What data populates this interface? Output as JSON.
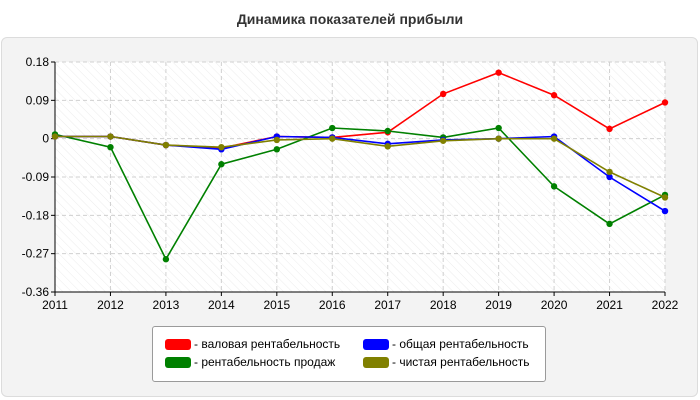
{
  "chart_data": {
    "type": "line",
    "title": "Динамика показателей прибыли",
    "xlabel": "",
    "ylabel": "",
    "x": [
      "2011",
      "2012",
      "2013",
      "2014",
      "2015",
      "2016",
      "2017",
      "2018",
      "2019",
      "2020",
      "2021",
      "2022"
    ],
    "ylim": [
      -0.36,
      0.18
    ],
    "yticks": [
      "0.18",
      "0.09",
      "0",
      "-0.09",
      "-0.18",
      "-0.27",
      "-0.36"
    ],
    "ytick_values": [
      0.18,
      0.09,
      0,
      -0.09,
      -0.18,
      -0.27,
      -0.36
    ],
    "grid": true,
    "legend_position": "bottom-center",
    "series": [
      {
        "name": "- валовая рентабельность",
        "color": "#ff0000",
        "values": [
          0.005,
          0.005,
          -0.015,
          -0.022,
          0.005,
          0.003,
          0.015,
          0.105,
          0.155,
          0.102,
          0.023,
          0.085
        ]
      },
      {
        "name": "- рентабельность продаж",
        "color": "#008000",
        "values": [
          0.01,
          -0.02,
          -0.283,
          -0.06,
          -0.025,
          0.025,
          0.018,
          0.003,
          0.025,
          -0.112,
          -0.2,
          -0.132
        ]
      },
      {
        "name": "- общая рентабельность",
        "color": "#0000ff",
        "values": [
          0.005,
          0.005,
          -0.015,
          -0.025,
          0.005,
          0.003,
          -0.012,
          -0.003,
          0.0,
          0.005,
          -0.09,
          -0.17
        ]
      },
      {
        "name": "- чистая рентабельность",
        "color": "#808000",
        "values": [
          0.005,
          0.005,
          -0.015,
          -0.02,
          -0.003,
          0.0,
          -0.018,
          -0.005,
          0.0,
          0.0,
          -0.078,
          -0.138
        ]
      }
    ]
  }
}
